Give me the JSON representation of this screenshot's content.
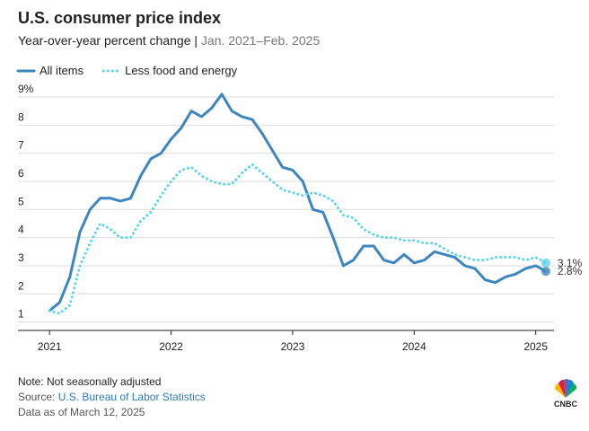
{
  "chart_data": {
    "type": "line",
    "title": "U.S. consumer price index",
    "subtitle": "Year-over-year percent change | ",
    "subtitle_range": "Jan. 2021–Feb. 2025",
    "x": [
      2021.0,
      2021.083,
      2021.167,
      2021.25,
      2021.333,
      2021.417,
      2021.5,
      2021.583,
      2021.667,
      2021.75,
      2021.833,
      2021.917,
      2022.0,
      2022.083,
      2022.167,
      2022.25,
      2022.333,
      2022.417,
      2022.5,
      2022.583,
      2022.667,
      2022.75,
      2022.833,
      2022.917,
      2023.0,
      2023.083,
      2023.167,
      2023.25,
      2023.333,
      2023.417,
      2023.5,
      2023.583,
      2023.667,
      2023.75,
      2023.833,
      2023.917,
      2024.0,
      2024.083,
      2024.167,
      2024.25,
      2024.333,
      2024.417,
      2024.5,
      2024.583,
      2024.667,
      2024.75,
      2024.833,
      2024.917,
      2025.0,
      2025.083
    ],
    "series": [
      {
        "name": "All items",
        "color": "#3d86c0",
        "style": "solid",
        "values": [
          1.4,
          1.7,
          2.6,
          4.2,
          5.0,
          5.4,
          5.4,
          5.3,
          5.4,
          6.2,
          6.8,
          7.0,
          7.5,
          7.9,
          8.5,
          8.3,
          8.6,
          9.1,
          8.5,
          8.3,
          8.2,
          7.7,
          7.1,
          6.5,
          6.4,
          6.0,
          5.0,
          4.9,
          4.0,
          3.0,
          3.2,
          3.7,
          3.7,
          3.2,
          3.1,
          3.4,
          3.1,
          3.2,
          3.5,
          3.4,
          3.3,
          3.0,
          2.9,
          2.5,
          2.4,
          2.6,
          2.7,
          2.9,
          3.0,
          2.8
        ],
        "value_labels": [
          null,
          null,
          null,
          null,
          null,
          null,
          null,
          null,
          null,
          null,
          null,
          null,
          null,
          null,
          null,
          null,
          null,
          null,
          null,
          null,
          null,
          null,
          null,
          null,
          null,
          null,
          null,
          null,
          null,
          null,
          null,
          null,
          null,
          null,
          null,
          null,
          null,
          null,
          null,
          null,
          null,
          null,
          null,
          null,
          null,
          null,
          null,
          null,
          null,
          "2.8%"
        ]
      },
      {
        "name": "Less food and energy",
        "color": "#5ed6e6",
        "style": "dotted",
        "values": [
          1.4,
          1.3,
          1.6,
          3.0,
          3.8,
          4.5,
          4.3,
          4.0,
          4.0,
          4.6,
          4.9,
          5.5,
          6.0,
          6.4,
          6.5,
          6.2,
          6.0,
          5.9,
          5.9,
          6.3,
          6.6,
          6.3,
          6.0,
          5.7,
          5.6,
          5.5,
          5.6,
          5.5,
          5.3,
          4.8,
          4.7,
          4.3,
          4.1,
          4.0,
          4.0,
          3.9,
          3.9,
          3.8,
          3.8,
          3.6,
          3.4,
          3.3,
          3.2,
          3.2,
          3.3,
          3.3,
          3.3,
          3.2,
          3.3,
          3.1
        ],
        "value_labels": [
          null,
          null,
          null,
          null,
          null,
          null,
          null,
          null,
          null,
          null,
          null,
          null,
          null,
          null,
          null,
          null,
          null,
          null,
          null,
          null,
          null,
          null,
          null,
          null,
          null,
          null,
          null,
          null,
          null,
          null,
          null,
          null,
          null,
          null,
          null,
          null,
          null,
          null,
          null,
          null,
          null,
          null,
          null,
          null,
          null,
          null,
          null,
          null,
          null,
          "3.1%"
        ]
      }
    ],
    "xlim": [
      2020.74,
      2025.15
    ],
    "xticks": [
      2021,
      2022,
      2023,
      2024,
      2025
    ],
    "ylim": [
      0.7,
      9
    ],
    "yticks": [
      1,
      2,
      3,
      4,
      5,
      6,
      7,
      8,
      {
        "value": 9,
        "label": "9%"
      }
    ],
    "grid": true,
    "note": "Note: Not seasonally adjusted",
    "source_label": "Source: ",
    "source": "U.S. Bureau of Labor Statistics",
    "data_date": "Data as of March 12, 2025",
    "logo": "CNBC"
  }
}
